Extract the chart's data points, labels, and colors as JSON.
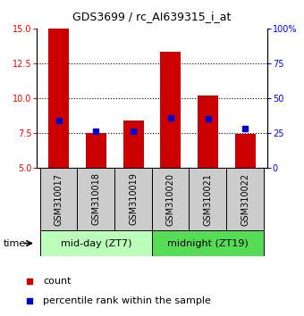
{
  "title": "GDS3699 / rc_AI639315_i_at",
  "samples": [
    "GSM310017",
    "GSM310018",
    "GSM310019",
    "GSM310020",
    "GSM310021",
    "GSM310022"
  ],
  "count_values": [
    15.0,
    7.5,
    8.4,
    13.3,
    10.2,
    7.4
  ],
  "percentile_values": [
    8.4,
    7.6,
    7.6,
    8.6,
    8.5,
    7.8
  ],
  "ylim": [
    5,
    15
  ],
  "y2lim": [
    0,
    100
  ],
  "yticks": [
    5,
    7.5,
    10,
    12.5,
    15
  ],
  "y2ticks": [
    0,
    25,
    50,
    75,
    100
  ],
  "y2tick_labels": [
    "0",
    "25",
    "50",
    "75",
    "100%"
  ],
  "bar_color": "#cc0000",
  "percentile_color": "#0000cc",
  "group1_label": "mid-day (ZT7)",
  "group2_label": "midnight (ZT19)",
  "group1_color": "#bbffbb",
  "group2_color": "#55dd55",
  "sample_box_color": "#cccccc",
  "time_label": "time",
  "legend_count": "count",
  "legend_percentile": "percentile rank within the sample",
  "bar_width": 0.55,
  "title_fontsize": 9,
  "tick_fontsize": 7,
  "label_fontsize": 7,
  "group_fontsize": 8
}
